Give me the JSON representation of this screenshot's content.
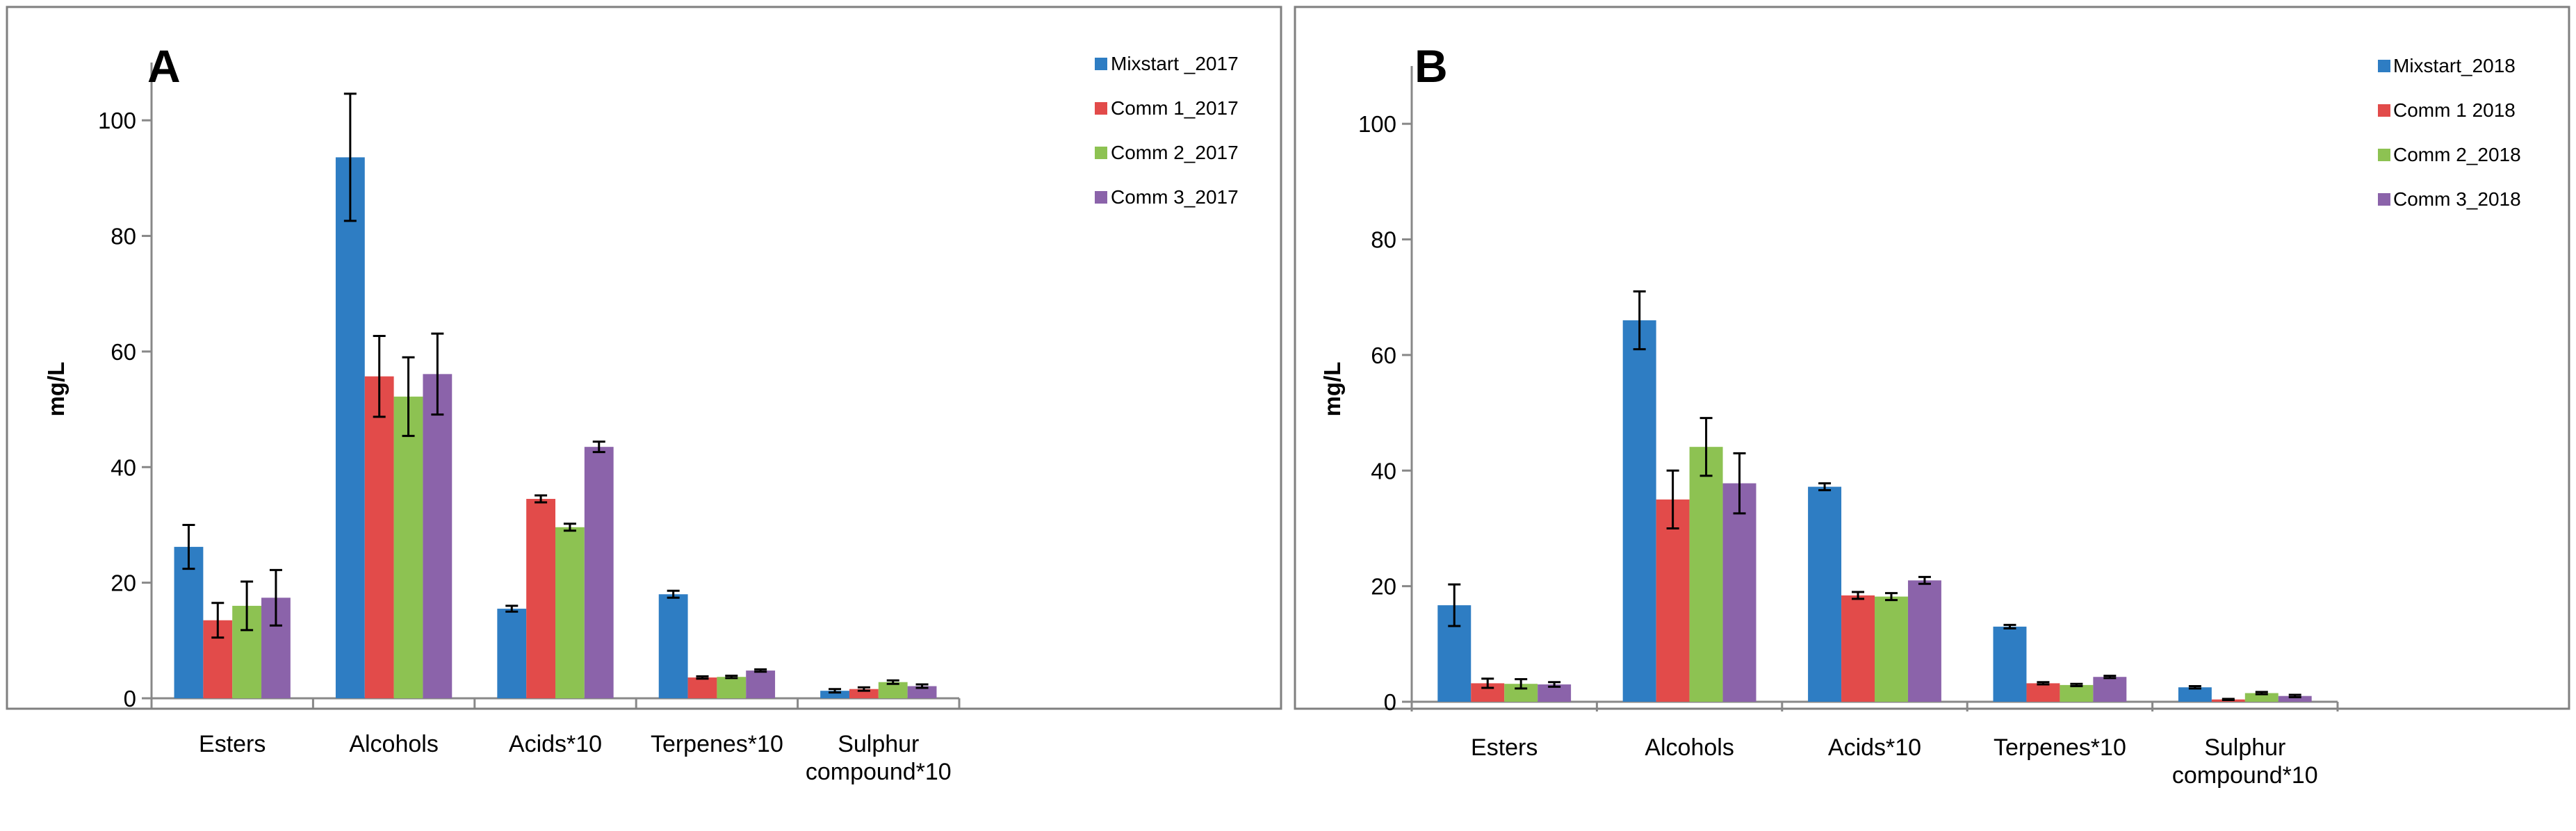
{
  "chart_data": [
    {
      "type": "bar",
      "panel_label": "A",
      "ylabel": "mg/L",
      "ylim": [
        0,
        110
      ],
      "yticks": [
        0,
        20,
        40,
        60,
        80,
        100
      ],
      "categories": [
        "Esters",
        "Alcohols",
        "Acids*10",
        "Terpenes*10",
        "Sulphur compound*10"
      ],
      "category_lines": [
        [
          "Esters"
        ],
        [
          "Alcohols"
        ],
        [
          "Acids*10"
        ],
        [
          "Terpenes*10"
        ],
        [
          "Sulphur",
          "compound*10"
        ]
      ],
      "legend_position": "right",
      "series": [
        {
          "name": "Mixstart _2017",
          "color": "#2e7dc3",
          "values": [
            26.2,
            93.6,
            15.5,
            18.0,
            1.3
          ],
          "errors": [
            3.8,
            11.0,
            0.5,
            0.6,
            0.3
          ]
        },
        {
          "name": "Comm 1_2017",
          "color": "#e24b4a",
          "values": [
            13.5,
            55.7,
            34.5,
            3.6,
            1.6
          ],
          "errors": [
            3.0,
            7.0,
            0.6,
            0.2,
            0.3
          ]
        },
        {
          "name": "Comm 2_2017",
          "color": "#8dc252",
          "values": [
            16.0,
            52.2,
            29.6,
            3.7,
            2.8
          ],
          "errors": [
            4.2,
            6.8,
            0.6,
            0.2,
            0.3
          ]
        },
        {
          "name": "Comm 3_2017",
          "color": "#8b63aa",
          "values": [
            17.4,
            56.1,
            43.5,
            4.8,
            2.1
          ],
          "errors": [
            4.8,
            7.0,
            0.9,
            0.2,
            0.3
          ]
        }
      ]
    },
    {
      "type": "bar",
      "panel_label": "B",
      "ylabel": "mg/L",
      "ylim": [
        0,
        110
      ],
      "yticks": [
        0,
        20,
        40,
        60,
        80,
        100
      ],
      "categories": [
        "Esters",
        "Alcohols",
        "Acids*10",
        "Terpenes*10",
        "Sulphur compound*10"
      ],
      "category_lines": [
        [
          "Esters"
        ],
        [
          "Alcohols"
        ],
        [
          "Acids*10"
        ],
        [
          "Terpenes*10"
        ],
        [
          "Sulphur",
          "compound*10"
        ]
      ],
      "legend_position": "right",
      "series": [
        {
          "name": "Mixstart_2018",
          "color": "#2e7dc3",
          "values": [
            16.7,
            66.0,
            37.2,
            13.0,
            2.5
          ],
          "errors": [
            3.6,
            5.0,
            0.6,
            0.3,
            0.2
          ]
        },
        {
          "name": "Comm 1  2018",
          "color": "#e24b4a",
          "values": [
            3.2,
            35.0,
            18.4,
            3.2,
            0.4
          ],
          "errors": [
            0.8,
            5.0,
            0.6,
            0.2,
            0.1
          ]
        },
        {
          "name": "Comm 2_2018",
          "color": "#8dc252",
          "values": [
            3.1,
            44.1,
            18.2,
            2.9,
            1.5
          ],
          "errors": [
            0.8,
            5.0,
            0.6,
            0.2,
            0.2
          ]
        },
        {
          "name": "Comm 3_2018",
          "color": "#8b63aa",
          "values": [
            3.0,
            37.8,
            21.0,
            4.3,
            1.0
          ],
          "errors": [
            0.4,
            5.2,
            0.6,
            0.2,
            0.2
          ]
        }
      ]
    }
  ]
}
